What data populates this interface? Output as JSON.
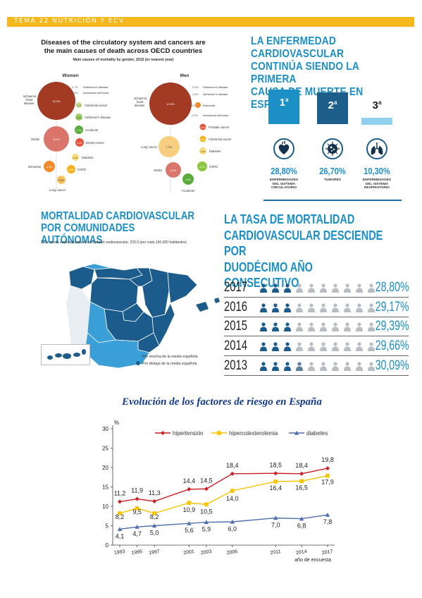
{
  "header": {
    "label": "TEMA 22 NUTRICIÓN Y ECV"
  },
  "oecd": {
    "title_line1": "Diseases of the circulatory system and cancers are",
    "title_line2": "the main causes of death across OECD countries",
    "subtitle": "Main causes of mortality by gender, 2015 (or nearest year)",
    "women": {
      "heading": "Women",
      "labels": {
        "ischaemic": "Ischaemic",
        "heart": "heart",
        "disease": "disease",
        "ischaemic_value": "16.0%",
        "stroke": "Stroke",
        "stroke_value": "8.2%",
        "dementia": "Dementia",
        "dementia_value": "4.9%",
        "lung": "Lung cancer",
        "lung_value": "3.8%",
        "copd": "COPD",
        "copd_value": "4.4%",
        "diabetes": "Diabetes",
        "diabetes_value": "2.4%",
        "breast": "Breast cancer",
        "breast_value": "3.4%",
        "accidents": "Accidents",
        "accidents_value": "2.7%",
        "alzheimer": "Alzheimer's disease",
        "alzheimer_value": "3.2%",
        "colorectal": "Colorectal cancer",
        "colorectal_value": "2.1%",
        "parkinson": "Parkinson's disease",
        "parkinson_value": "0.7%",
        "selfharm": "Intentional self-harm",
        "selfharm_value": "0.8%"
      }
    },
    "men": {
      "heading": "Men",
      "labels": {
        "ischaemic": "Ischaemic",
        "heart": "heart",
        "disease": "disease",
        "ischaemic_value": "12.8%",
        "lung": "Lung cancer",
        "lung_value": "7.2%",
        "stroke": "Stroke",
        "stroke_value": "6.0%",
        "accidents": "Accidents",
        "accidents_value": "4.4%",
        "copd": "COPD",
        "copd_value": "4.1%",
        "diabetes": "Diabetes",
        "diabetes_value": "3.1%",
        "colorectal": "Colorectal cancer",
        "colorectal_value": "2.8%",
        "prostate": "Prostate cancer",
        "prostate_value": "2.5%",
        "selfharm": "Intentional self-harm",
        "selfharm_value": "2.2%",
        "dementia": "Dementia",
        "dementia_value": "2.1%",
        "alzheimer": "Alzheimer's disease",
        "alzheimer_value": "1.5%",
        "parkinson": "Parkinson's disease",
        "parkinson_value": "0.9%"
      }
    }
  },
  "causes": {
    "title_line1": "LA ENFERMEDAD CARDIOVASCULAR",
    "title_line2": "CONTINÚA SIENDO LA PRIMERA",
    "title_line3": "CAUSA DE MUERTE EN ESPAÑA",
    "items": [
      {
        "rank": "1",
        "sup": "a",
        "value": "28,80%",
        "cap1": "ENFERMEDADES",
        "cap2": "DEL SISTEMA",
        "cap3": "CIRCULATORIO",
        "color": "#1b8fc6",
        "icon": "heart-icon"
      },
      {
        "rank": "2",
        "sup": "a",
        "value": "26,70%",
        "cap1": "TUMORES",
        "cap2": "",
        "cap3": "",
        "color": "#1d5f8a",
        "icon": "tumor-icon"
      },
      {
        "rank": "3",
        "sup": "a",
        "value": "10,30%",
        "cap1": "ENFERMEDADES",
        "cap2": "DEL SISTEMA",
        "cap3": "RESPIRATORIO",
        "color": "#8fd0ef",
        "icon": "lungs-icon"
      }
    ]
  },
  "regions": {
    "title_line1": "MORTALIDAD CARDIOVASCULAR",
    "title_line2": "POR COMUNIDADES AUTÓNOMAS",
    "subtitle": "Tasa media estandarizada de mortalidad cardiovascular: 233,9 (por cada 100.000 habitantes)",
    "legend_above": "Por encima de la media española",
    "legend_below": "Por debajo de la media española",
    "color_above": "#3a9fd6",
    "color_below": "#1b5c8c"
  },
  "trend": {
    "title_line1": "LA TASA DE MORTALIDAD",
    "title_line2": "CARDIOVASCULAR DESCIENDE POR",
    "title_line3": "DUODÉCIMO AÑO CONSECUTIVO",
    "rows": [
      {
        "year": "2017",
        "value": "28,80%",
        "fraction": 0.288
      },
      {
        "year": "2016",
        "value": "29,17%",
        "fraction": 0.2917
      },
      {
        "year": "2015",
        "value": "29,39%",
        "fraction": 0.2939
      },
      {
        "year": "2014",
        "value": "29,66%",
        "fraction": 0.2966
      },
      {
        "year": "2013",
        "value": "30,09%",
        "fraction": 0.3009
      }
    ]
  },
  "chart_data": {
    "type": "line",
    "title": "Evolución de los factores de riesgo en España",
    "ylabel": "%",
    "xlabel": "año de encuesta",
    "ylim": [
      0,
      30
    ],
    "yticks": [
      0,
      5,
      10,
      15,
      20,
      25,
      30
    ],
    "x": [
      1993,
      1995,
      1997,
      2001,
      2003,
      2006,
      2011,
      2014,
      2017
    ],
    "series": [
      {
        "name": "hipertensión",
        "color": "#cc1f26",
        "values": [
          11.2,
          11.9,
          11.3,
          14.4,
          14.5,
          18.4,
          18.5,
          18.4,
          19.8
        ],
        "labels": [
          "11,2",
          "11,9",
          "11,3",
          "14,4",
          "14,5",
          "18,4",
          "18,5",
          "18,4",
          "19,8"
        ]
      },
      {
        "name": "hipercolesterolemia",
        "color": "#f7c400",
        "values": [
          8.2,
          9.5,
          8.2,
          10.9,
          10.5,
          14.0,
          16.4,
          16.5,
          17.9
        ],
        "labels": [
          "8,2",
          "9,5",
          "8,2",
          "10,9",
          "10,5",
          "14,0",
          "16,4",
          "16,5",
          "17,9"
        ]
      },
      {
        "name": "diabetes",
        "color": "#4e6fb0",
        "values": [
          4.1,
          4.7,
          5.0,
          5.6,
          5.9,
          6.0,
          7.0,
          6.8,
          7.8
        ],
        "labels": [
          "4,1",
          "4,7",
          "5,0",
          "5,6",
          "5,9",
          "6,0",
          "7,0",
          "6,8",
          "7,8"
        ]
      }
    ],
    "grid": false,
    "legend": "top"
  }
}
